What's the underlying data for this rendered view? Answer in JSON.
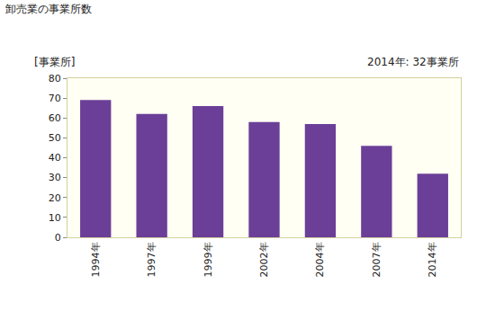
{
  "chart_data": {
    "type": "bar",
    "title": "卸売業の事業所数",
    "ylabel": "[事業所]",
    "annotation": "2014年: 32事業所",
    "categories": [
      "1994年",
      "1997年",
      "1999年",
      "2002年",
      "2004年",
      "2007年",
      "2014年"
    ],
    "values": [
      69,
      62,
      66,
      58,
      57,
      46,
      32
    ],
    "color": "#6b3f98",
    "ylim": [
      0,
      80
    ],
    "yticks": [
      0,
      10,
      20,
      30,
      40,
      50,
      60,
      70,
      80
    ],
    "grid": false
  }
}
